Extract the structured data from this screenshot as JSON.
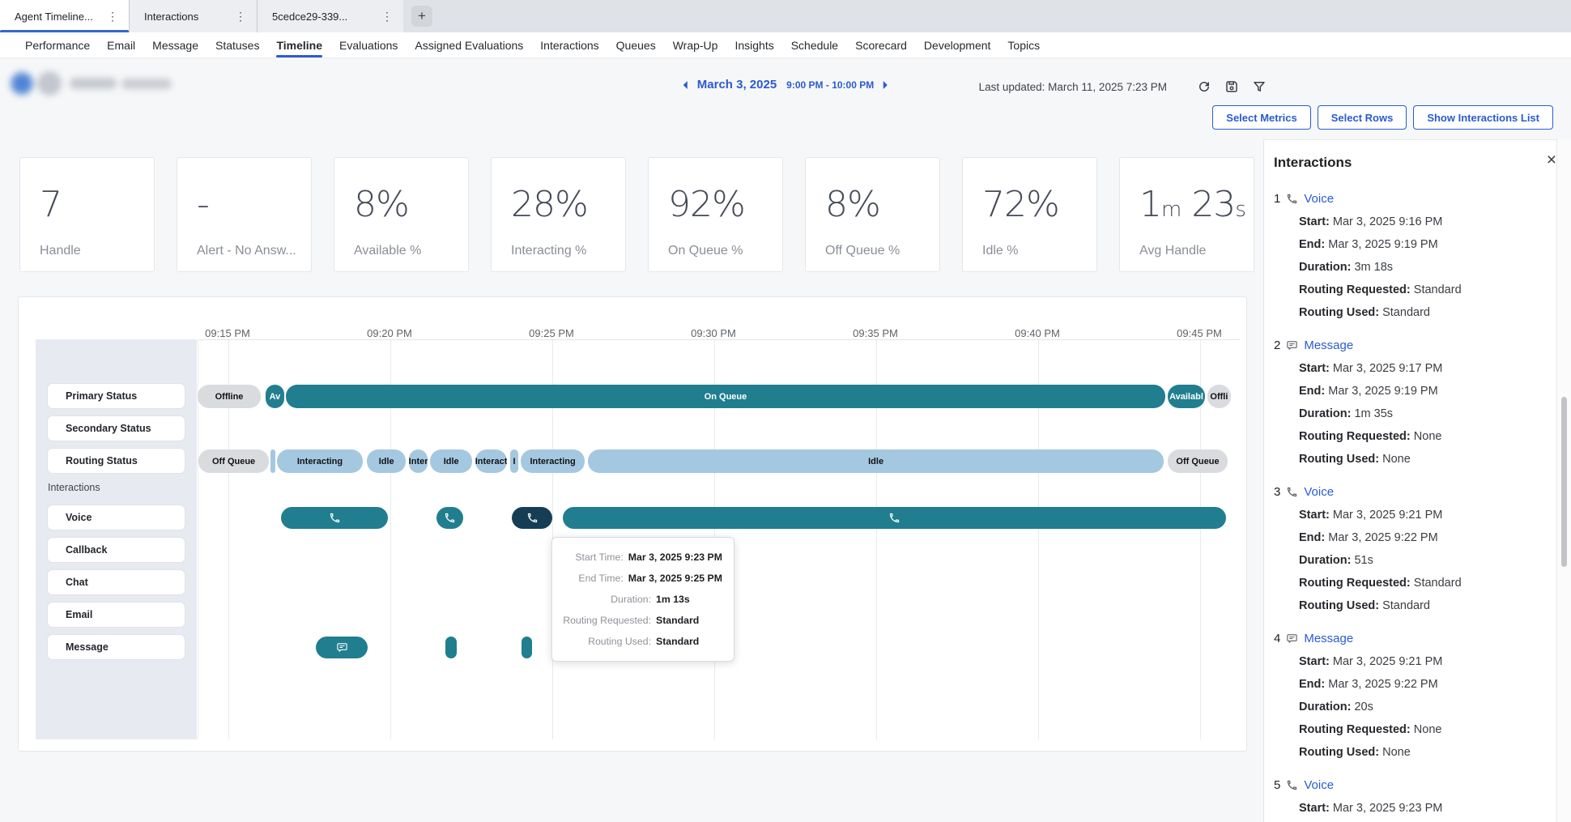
{
  "browser": {
    "tabs": [
      {
        "label": "Agent Timeline...",
        "menu_icon": "⋮",
        "active": true
      },
      {
        "label": "Interactions",
        "menu_icon": "⋮",
        "active": false
      },
      {
        "label": "5cedce29-339...",
        "menu_icon": "⋮",
        "active": false
      }
    ],
    "new_tab": "+"
  },
  "nav": {
    "items": [
      "Performance",
      "Email",
      "Message",
      "Statuses",
      "Timeline",
      "Evaluations",
      "Assigned Evaluations",
      "Interactions",
      "Queues",
      "Wrap-Up",
      "Insights",
      "Schedule",
      "Scorecard",
      "Development",
      "Topics"
    ],
    "active": "Timeline"
  },
  "header": {
    "date": "March 3, 2025",
    "time_range": "9:00 PM - 10:00 PM",
    "last_updated": "Last updated: March 11, 2025 7:23 PM"
  },
  "toolbar": {
    "select_metrics": "Select Metrics",
    "select_rows": "Select Rows",
    "show_interactions_list": "Show Interactions List"
  },
  "metrics": [
    {
      "value": "7",
      "label": "Handle"
    },
    {
      "value": "-",
      "label": "Alert - No Answ..."
    },
    {
      "value": "8%",
      "label": "Available %"
    },
    {
      "value": "28%",
      "label": "Interacting %"
    },
    {
      "value": "92%",
      "label": "On Queue %"
    },
    {
      "value": "8%",
      "label": "Off Queue %"
    },
    {
      "value": "72%",
      "label": "Idle %"
    },
    {
      "value": "1m 23s",
      "label": "Avg Handle"
    }
  ],
  "chart_data": {
    "type": "timeline",
    "x_axis": {
      "tick_labels": [
        "09:15 PM",
        "09:20 PM",
        "09:25 PM",
        "09:30 PM",
        "09:35 PM",
        "09:40 PM",
        "09:45 PM"
      ],
      "unit": "minutes_after_9:00_PM",
      "range": [
        14,
        46
      ]
    },
    "row_labels": {
      "primary": "Primary Status",
      "secondary": "Secondary Status",
      "routing": "Routing Status",
      "group": "Interactions",
      "voice": "Voice",
      "callback": "Callback",
      "chat": "Chat",
      "email": "Email",
      "message": "Message"
    },
    "series": [
      {
        "row": "primary",
        "segments": [
          {
            "start": 14.05,
            "end": 16.0,
            "kind": "gray",
            "label": "Offline"
          },
          {
            "start": 16.15,
            "end": 16.72,
            "kind": "teal",
            "label": "Av"
          },
          {
            "start": 16.78,
            "end": 43.92,
            "kind": "teal",
            "label": "On Queue"
          },
          {
            "start": 44.0,
            "end": 45.15,
            "kind": "teal",
            "label": "Availabl"
          },
          {
            "start": 45.22,
            "end": 45.95,
            "kind": "gray",
            "label": "Offli"
          }
        ]
      },
      {
        "row": "routing",
        "segments": [
          {
            "start": 14.08,
            "end": 16.25,
            "kind": "gray",
            "label": "Off Queue"
          },
          {
            "start": 16.3,
            "end": 16.44,
            "kind": "lightblue",
            "label": ""
          },
          {
            "start": 16.5,
            "end": 19.15,
            "kind": "lightblue",
            "label": "Interacting"
          },
          {
            "start": 19.28,
            "end": 20.48,
            "kind": "lightblue",
            "label": "Idle"
          },
          {
            "start": 20.58,
            "end": 21.15,
            "kind": "lightblue",
            "label": "Inter"
          },
          {
            "start": 21.23,
            "end": 22.53,
            "kind": "lightblue",
            "label": "Idle"
          },
          {
            "start": 22.63,
            "end": 23.6,
            "kind": "lightblue",
            "label": "Interact"
          },
          {
            "start": 23.7,
            "end": 23.95,
            "kind": "lightblue",
            "label": "I"
          },
          {
            "start": 24.03,
            "end": 26.0,
            "kind": "lightblue",
            "label": "Interacting"
          },
          {
            "start": 26.1,
            "end": 43.88,
            "kind": "lightblue",
            "label": "Idle"
          },
          {
            "start": 44.0,
            "end": 45.85,
            "kind": "gray",
            "label": "Off Queue"
          }
        ]
      },
      {
        "row": "voice",
        "segments": [
          {
            "start": 16.63,
            "end": 19.93,
            "kind": "teal",
            "icon": "phone"
          },
          {
            "start": 21.43,
            "end": 22.25,
            "kind": "teal",
            "icon": "phone"
          },
          {
            "start": 23.75,
            "end": 25.0,
            "kind": "dark",
            "icon": "phone",
            "selected": true
          },
          {
            "start": 25.33,
            "end": 45.8,
            "kind": "teal",
            "icon": "phone"
          }
        ]
      },
      {
        "row": "message",
        "segments": [
          {
            "start": 17.7,
            "end": 19.3,
            "kind": "teal",
            "icon": "chat"
          },
          {
            "start": 21.7,
            "end": 22.05,
            "kind": "teal"
          },
          {
            "start": 24.05,
            "end": 24.38,
            "kind": "teal"
          }
        ]
      }
    ]
  },
  "tooltip": {
    "rows": [
      {
        "label": "Start Time:",
        "value": "Mar 3, 2025 9:23 PM"
      },
      {
        "label": "End Time:",
        "value": "Mar 3, 2025 9:25 PM"
      },
      {
        "label": "Duration:",
        "value": "1m 13s"
      },
      {
        "label": "Routing Requested:",
        "value": "Standard"
      },
      {
        "label": "Routing Used:",
        "value": "Standard"
      }
    ]
  },
  "panel": {
    "title": "Interactions",
    "close_icon": "×",
    "items": [
      {
        "num": "1",
        "type": "Voice",
        "icon": "phone",
        "details": [
          [
            "Start:",
            "Mar 3, 2025 9:16 PM"
          ],
          [
            "End:",
            "Mar 3, 2025 9:19 PM"
          ],
          [
            "Duration:",
            "3m 18s"
          ],
          [
            "Routing Requested:",
            "Standard"
          ],
          [
            "Routing Used:",
            "Standard"
          ]
        ]
      },
      {
        "num": "2",
        "type": "Message",
        "icon": "chat",
        "details": [
          [
            "Start:",
            "Mar 3, 2025 9:17 PM"
          ],
          [
            "End:",
            "Mar 3, 2025 9:19 PM"
          ],
          [
            "Duration:",
            "1m 35s"
          ],
          [
            "Routing Requested:",
            "None"
          ],
          [
            "Routing Used:",
            "None"
          ]
        ]
      },
      {
        "num": "3",
        "type": "Voice",
        "icon": "phone",
        "details": [
          [
            "Start:",
            "Mar 3, 2025 9:21 PM"
          ],
          [
            "End:",
            "Mar 3, 2025 9:22 PM"
          ],
          [
            "Duration:",
            "51s"
          ],
          [
            "Routing Requested:",
            "Standard"
          ],
          [
            "Routing Used:",
            "Standard"
          ]
        ]
      },
      {
        "num": "4",
        "type": "Message",
        "icon": "chat",
        "details": [
          [
            "Start:",
            "Mar 3, 2025 9:21 PM"
          ],
          [
            "End:",
            "Mar 3, 2025 9:22 PM"
          ],
          [
            "Duration:",
            "20s"
          ],
          [
            "Routing Requested:",
            "None"
          ],
          [
            "Routing Used:",
            "None"
          ]
        ]
      },
      {
        "num": "5",
        "type": "Voice",
        "icon": "phone",
        "details": [
          [
            "Start:",
            "Mar 3, 2025 9:23 PM"
          ]
        ]
      }
    ]
  },
  "colors": {
    "accent_blue": "#2a5bd0",
    "teal": "#207e8f",
    "teal_dark": "#153e54",
    "light_blue": "#a5c8e1",
    "gray_segment": "#d9dbde"
  }
}
